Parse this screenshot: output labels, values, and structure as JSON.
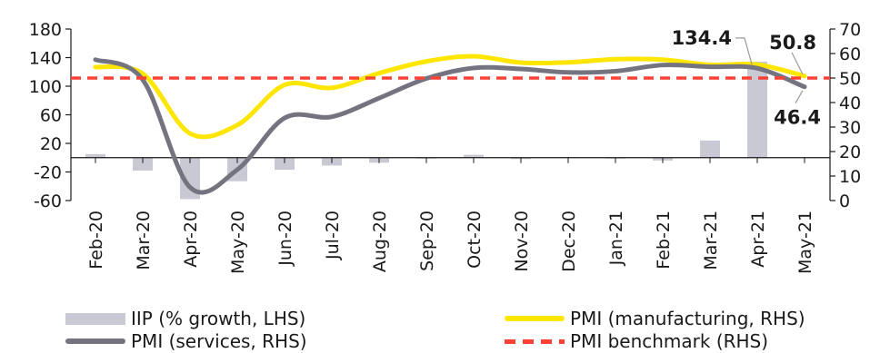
{
  "chart_data": {
    "type": "bar+line",
    "categories": [
      "Feb-20",
      "Mar-20",
      "Apr-20",
      "May-20",
      "Jun-20",
      "Jul-20",
      "Aug-20",
      "Sep-20",
      "Oct-20",
      "Nov-20",
      "Dec-20",
      "Jan-21",
      "Feb-21",
      "Mar-21",
      "Apr-21",
      "May-21"
    ],
    "left_axis": {
      "ylim": [
        -60,
        180
      ],
      "ticks": [
        -60,
        -20,
        20,
        60,
        100,
        140,
        180
      ]
    },
    "right_axis": {
      "ylim": [
        0,
        70
      ],
      "ticks": [
        0,
        10,
        20,
        30,
        40,
        50,
        60,
        70
      ]
    },
    "series": [
      {
        "name": "IIP (% growth, LHS)",
        "axis": "left",
        "kind": "bar",
        "color": "#c9c9d3",
        "values": [
          5,
          -18,
          -58,
          -33,
          -17,
          -11,
          -7,
          0,
          4,
          -2,
          1,
          -1,
          -4,
          24,
          134.4,
          null
        ]
      },
      {
        "name": "PMI (manufacturing, RHS)",
        "axis": "right",
        "kind": "line",
        "color": "#ffe600",
        "values": [
          54.5,
          51.8,
          27.4,
          30.8,
          47.2,
          46.0,
          52.0,
          56.8,
          58.9,
          56.3,
          56.4,
          57.7,
          57.5,
          55.4,
          55.5,
          50.8
        ]
      },
      {
        "name": "PMI (services, RHS)",
        "axis": "right",
        "kind": "line",
        "color": "#747480",
        "values": [
          57.5,
          49.3,
          5.4,
          12.6,
          33.7,
          34.2,
          41.8,
          49.8,
          54.1,
          53.7,
          52.3,
          52.8,
          55.3,
          54.6,
          54.0,
          46.4
        ]
      },
      {
        "name": "PMI benchmark (RHS)",
        "axis": "right",
        "kind": "dashed",
        "color": "#ff4136",
        "values": [
          50,
          50,
          50,
          50,
          50,
          50,
          50,
          50,
          50,
          50,
          50,
          50,
          50,
          50,
          50,
          50
        ]
      }
    ],
    "annotations": [
      {
        "text": "134.4",
        "series": "IIP (% growth, LHS)",
        "category": "Apr-21"
      },
      {
        "text": "50.8",
        "series": "PMI (manufacturing, RHS)",
        "category": "May-21"
      },
      {
        "text": "46.4",
        "series": "PMI (services, RHS)",
        "category": "May-21"
      }
    ],
    "legend_position": "bottom"
  }
}
